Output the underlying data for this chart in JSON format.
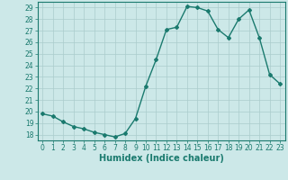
{
  "x": [
    0,
    1,
    2,
    3,
    4,
    5,
    6,
    7,
    8,
    9,
    10,
    11,
    12,
    13,
    14,
    15,
    16,
    17,
    18,
    19,
    20,
    21,
    22,
    23
  ],
  "y": [
    19.8,
    19.6,
    19.1,
    18.7,
    18.5,
    18.2,
    18.0,
    17.8,
    18.1,
    19.4,
    22.2,
    24.5,
    27.1,
    27.3,
    29.1,
    29.0,
    28.7,
    27.1,
    26.4,
    28.0,
    28.8,
    26.4,
    23.2,
    22.4
  ],
  "line_color": "#1a7a6e",
  "marker": "D",
  "marker_size": 2,
  "bg_color": "#cce8e8",
  "grid_color": "#aacccc",
  "xlabel": "Humidex (Indice chaleur)",
  "xlim": [
    -0.5,
    23.5
  ],
  "ylim": [
    17.5,
    29.5
  ],
  "yticks": [
    18,
    19,
    20,
    21,
    22,
    23,
    24,
    25,
    26,
    27,
    28,
    29
  ],
  "xticks": [
    0,
    1,
    2,
    3,
    4,
    5,
    6,
    7,
    8,
    9,
    10,
    11,
    12,
    13,
    14,
    15,
    16,
    17,
    18,
    19,
    20,
    21,
    22,
    23
  ],
  "tick_label_size": 5.5,
  "xlabel_size": 7,
  "tick_color": "#1a7a6e",
  "spine_color": "#1a7a6e",
  "linewidth": 1.0
}
